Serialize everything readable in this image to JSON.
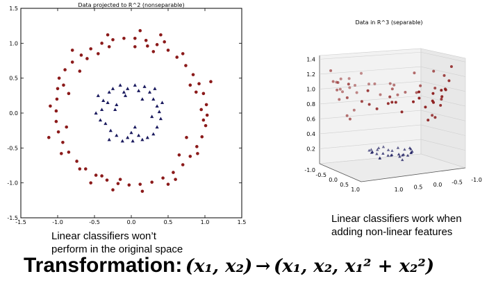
{
  "chart_data": [
    {
      "type": "scatter",
      "title": "Data projected to R^2 (nonseparable)",
      "xlim": [
        -1.5,
        1.5
      ],
      "ylim": [
        -1.5,
        1.5
      ],
      "xticks": [
        "-1.5",
        "-1.0",
        "-0.5",
        "0.0",
        "0.5",
        "1.0",
        "1.5"
      ],
      "yticks": [
        "1.5",
        "1.0",
        "0.5",
        "0.0",
        "-0.5",
        "-1.0",
        "-1.5"
      ],
      "grid": false,
      "series": [
        {
          "color": "#8b1a1a",
          "marker": "circle",
          "points": [
            [
              -1.0,
              0.35
            ],
            [
              -0.98,
              0.5
            ],
            [
              -0.9,
              0.62
            ],
            [
              -0.8,
              0.73
            ],
            [
              -0.68,
              0.83
            ],
            [
              -0.55,
              0.92
            ],
            [
              -0.4,
              1.0
            ],
            [
              -0.25,
              1.05
            ],
            [
              -0.1,
              1.07
            ],
            [
              0.05,
              1.07
            ],
            [
              0.2,
              1.04
            ],
            [
              0.35,
              0.98
            ],
            [
              0.5,
              0.9
            ],
            [
              0.62,
              0.8
            ],
            [
              0.74,
              0.68
            ],
            [
              0.84,
              0.55
            ],
            [
              0.92,
              0.42
            ],
            [
              0.98,
              0.28
            ],
            [
              1.02,
              0.12
            ],
            [
              1.03,
              -0.03
            ],
            [
              1.01,
              -0.18
            ],
            [
              0.96,
              -0.34
            ],
            [
              0.89,
              -0.48
            ],
            [
              0.8,
              -0.62
            ],
            [
              0.7,
              -0.74
            ],
            [
              0.57,
              -0.85
            ],
            [
              0.43,
              -0.93
            ],
            [
              0.28,
              -0.99
            ],
            [
              0.12,
              -1.02
            ],
            [
              -0.03,
              -1.03
            ],
            [
              -0.18,
              -1.01
            ],
            [
              -0.33,
              -0.96
            ],
            [
              -0.48,
              -0.89
            ],
            [
              -0.62,
              -0.8
            ],
            [
              -0.74,
              -0.69
            ],
            [
              -0.85,
              -0.56
            ],
            [
              -0.93,
              -0.42
            ],
            [
              -0.99,
              -0.27
            ],
            [
              -1.02,
              -0.12
            ],
            [
              -1.02,
              0.03
            ],
            [
              -1.01,
              0.2
            ],
            [
              -0.92,
              0.4
            ],
            [
              -0.6,
              0.78
            ],
            [
              -0.32,
              1.12
            ],
            [
              0.12,
              1.18
            ],
            [
              0.45,
              1.02
            ],
            [
              0.7,
              0.85
            ],
            [
              0.88,
              0.3
            ],
            [
              0.95,
              0.05
            ],
            [
              0.9,
              -0.58
            ],
            [
              0.6,
              -0.95
            ],
            [
              0.15,
              -1.12
            ],
            [
              -0.25,
              -1.1
            ],
            [
              -0.7,
              -0.8
            ],
            [
              -0.95,
              -0.58
            ],
            [
              -1.1,
              0.1
            ],
            [
              -0.85,
              0.28
            ],
            [
              -0.45,
              0.85
            ],
            [
              0.3,
              0.88
            ],
            [
              0.8,
              0.4
            ],
            [
              0.65,
              -0.6
            ],
            [
              -0.4,
              -0.9
            ],
            [
              -0.88,
              -0.2
            ],
            [
              0.05,
              0.95
            ],
            [
              0.98,
              -0.1
            ],
            [
              -0.15,
              -0.95
            ],
            [
              1.08,
              0.45
            ],
            [
              0.4,
              1.12
            ],
            [
              -0.8,
              0.9
            ],
            [
              -1.12,
              -0.35
            ],
            [
              0.5,
              -1.02
            ],
            [
              -0.55,
              -1.0
            ],
            [
              0.22,
              0.96
            ],
            [
              -0.7,
              0.6
            ],
            [
              0.75,
              -0.35
            ],
            [
              -0.3,
              0.95
            ]
          ]
        },
        {
          "color": "#1a1a5e",
          "marker": "triangle",
          "points": [
            [
              -0.45,
              0.25
            ],
            [
              -0.4,
              0.05
            ],
            [
              -0.35,
              -0.15
            ],
            [
              -0.42,
              -0.1
            ],
            [
              -0.48,
              0.0
            ],
            [
              -0.3,
              0.3
            ],
            [
              -0.25,
              0.35
            ],
            [
              -0.2,
              0.12
            ],
            [
              -0.15,
              0.4
            ],
            [
              -0.1,
              0.3
            ],
            [
              -0.05,
              0.35
            ],
            [
              0.05,
              0.4
            ],
            [
              0.1,
              0.32
            ],
            [
              0.18,
              0.38
            ],
            [
              0.25,
              0.3
            ],
            [
              0.3,
              0.2
            ],
            [
              0.35,
              0.1
            ],
            [
              0.38,
              0.02
            ],
            [
              0.4,
              -0.08
            ],
            [
              0.35,
              -0.2
            ],
            [
              0.3,
              -0.3
            ],
            [
              0.22,
              -0.35
            ],
            [
              0.15,
              -0.38
            ],
            [
              0.1,
              -0.32
            ],
            [
              0.02,
              -0.4
            ],
            [
              -0.05,
              -0.35
            ],
            [
              -0.12,
              -0.4
            ],
            [
              -0.2,
              -0.32
            ],
            [
              -0.28,
              -0.25
            ],
            [
              -0.32,
              0.15
            ],
            [
              -0.22,
              0.05
            ],
            [
              0.0,
              -0.28
            ],
            [
              0.28,
              -0.05
            ],
            [
              0.15,
              0.2
            ],
            [
              -0.38,
              0.18
            ],
            [
              0.42,
              0.15
            ],
            [
              0.05,
              -0.2
            ],
            [
              -0.08,
              0.25
            ],
            [
              0.32,
              0.35
            ],
            [
              -0.3,
              -0.38
            ]
          ]
        }
      ]
    },
    {
      "type": "scatter3d",
      "title": "Data in R^3 (separable)",
      "zticks": [
        "1.4",
        "1.2",
        "1.0",
        "0.8",
        "0.6",
        "0.4",
        "0.2"
      ],
      "xticks": [
        "-1.0",
        "-0.5",
        "0.0",
        "0.5",
        "1.0"
      ],
      "yticks": [
        "1.0",
        "0.5",
        "0.0",
        "-0.5",
        "-1.0"
      ],
      "zlim": [
        0.0,
        1.45
      ],
      "grid": true,
      "series": [
        {
          "color": "#8b1a1a",
          "marker": "circle",
          "points": [
            [
              -1.0,
              0.1,
              1.0
            ],
            [
              -0.9,
              -0.3,
              0.9
            ],
            [
              -0.8,
              0.5,
              0.9
            ],
            [
              -0.7,
              -0.6,
              0.85
            ],
            [
              -0.6,
              0.7,
              0.85
            ],
            [
              -0.4,
              -0.9,
              1.0
            ],
            [
              -0.2,
              0.95,
              0.95
            ],
            [
              0.0,
              -1.0,
              1.0
            ],
            [
              0.2,
              1.0,
              1.05
            ],
            [
              0.4,
              -0.9,
              0.95
            ],
            [
              0.6,
              0.8,
              1.0
            ],
            [
              0.75,
              -0.6,
              0.9
            ],
            [
              0.9,
              0.4,
              0.95
            ],
            [
              1.0,
              -0.1,
              1.0
            ],
            [
              0.95,
              0.25,
              0.98
            ],
            [
              -0.95,
              -0.25,
              1.0
            ],
            [
              -0.5,
              0.85,
              1.0
            ],
            [
              0.5,
              -0.85,
              1.0
            ],
            [
              -0.3,
              -0.95,
              1.0
            ],
            [
              0.3,
              0.95,
              1.0
            ],
            [
              -0.85,
              0.55,
              1.05
            ],
            [
              0.85,
              -0.55,
              1.05
            ],
            [
              -0.1,
              1.05,
              1.1
            ],
            [
              0.1,
              -1.05,
              1.1
            ],
            [
              -1.05,
              0.3,
              1.2
            ],
            [
              1.05,
              -0.3,
              1.2
            ],
            [
              -0.65,
              -0.75,
              1.0
            ],
            [
              0.65,
              0.75,
              1.0
            ],
            [
              -0.2,
              -1.05,
              1.15
            ],
            [
              0.25,
              1.05,
              1.15
            ],
            [
              -0.9,
              0.6,
              1.17
            ],
            [
              0.9,
              -0.6,
              1.17
            ],
            [
              -0.35,
              1.0,
              1.12
            ],
            [
              0.35,
              -1.0,
              1.12
            ],
            [
              -1.1,
              -0.05,
              1.22
            ],
            [
              1.1,
              0.05,
              1.22
            ],
            [
              -0.55,
              0.9,
              1.1
            ],
            [
              0.55,
              -0.9,
              1.1
            ],
            [
              -0.8,
              -0.5,
              0.89
            ],
            [
              0.8,
              0.5,
              0.89
            ],
            [
              -0.15,
              0.98,
              0.98
            ],
            [
              0.15,
              -0.98,
              0.98
            ],
            [
              -0.98,
              -0.45,
              1.16
            ],
            [
              0.98,
              0.45,
              1.16
            ],
            [
              0.0,
              0.95,
              0.9
            ],
            [
              0.0,
              -0.95,
              0.9
            ],
            [
              -0.45,
              -0.8,
              0.85
            ],
            [
              0.45,
              0.8,
              0.85
            ],
            [
              -0.75,
              0.3,
              0.65
            ],
            [
              0.75,
              -0.3,
              0.65
            ],
            [
              -0.6,
              0.55,
              0.66
            ],
            [
              0.6,
              -0.55,
              0.66
            ],
            [
              -1.05,
              0.5,
              1.35
            ],
            [
              1.05,
              -0.5,
              1.35
            ],
            [
              0.3,
              0.3,
              1.0
            ],
            [
              -0.3,
              -0.3,
              1.0
            ],
            [
              0.7,
              0.7,
              0.98
            ],
            [
              -0.7,
              -0.7,
              0.98
            ],
            [
              0.2,
              -0.8,
              0.68
            ],
            [
              -0.2,
              0.8,
              0.68
            ]
          ]
        },
        {
          "color": "#1a1a5e",
          "marker": "triangle",
          "points": [
            [
              -0.4,
              0.1,
              0.17
            ],
            [
              -0.35,
              -0.2,
              0.16
            ],
            [
              -0.3,
              0.25,
              0.16
            ],
            [
              -0.2,
              -0.3,
              0.13
            ],
            [
              -0.1,
              0.35,
              0.13
            ],
            [
              0.0,
              -0.38,
              0.14
            ],
            [
              0.1,
              0.35,
              0.13
            ],
            [
              0.2,
              -0.3,
              0.13
            ],
            [
              0.3,
              0.25,
              0.15
            ],
            [
              0.35,
              -0.15,
              0.15
            ],
            [
              0.4,
              0.05,
              0.16
            ],
            [
              0.38,
              0.2,
              0.18
            ],
            [
              -0.38,
              -0.05,
              0.15
            ],
            [
              0.15,
              0.38,
              0.17
            ],
            [
              -0.15,
              -0.38,
              0.17
            ],
            [
              0.25,
              0.3,
              0.16
            ],
            [
              -0.25,
              -0.25,
              0.12
            ],
            [
              0.05,
              0.4,
              0.16
            ],
            [
              -0.05,
              -0.4,
              0.16
            ],
            [
              0.32,
              -0.25,
              0.17
            ],
            [
              -0.32,
              0.2,
              0.14
            ],
            [
              0.42,
              -0.05,
              0.18
            ],
            [
              -0.42,
              0.05,
              0.18
            ],
            [
              0.18,
              -0.35,
              0.16
            ],
            [
              -0.18,
              0.35,
              0.16
            ],
            [
              0.1,
              -0.2,
              0.05
            ],
            [
              -0.1,
              0.2,
              0.05
            ],
            [
              0.0,
              0.0,
              0.1
            ],
            [
              0.28,
              0.0,
              0.08
            ],
            [
              -0.28,
              0.0,
              0.08
            ]
          ]
        }
      ]
    }
  ],
  "captions": {
    "left_line1": "Linear classifiers won’t",
    "left_line2": "perform in the original space",
    "right_line1": "Linear classifiers work when",
    "right_line2": "adding non-linear features"
  },
  "transformation": {
    "label": "Transformation:",
    "formula_lhs": "(x₁, x₂)",
    "arrow": "→",
    "formula_rhs": "(x₁, x₂, x₁² + x₂²)"
  }
}
